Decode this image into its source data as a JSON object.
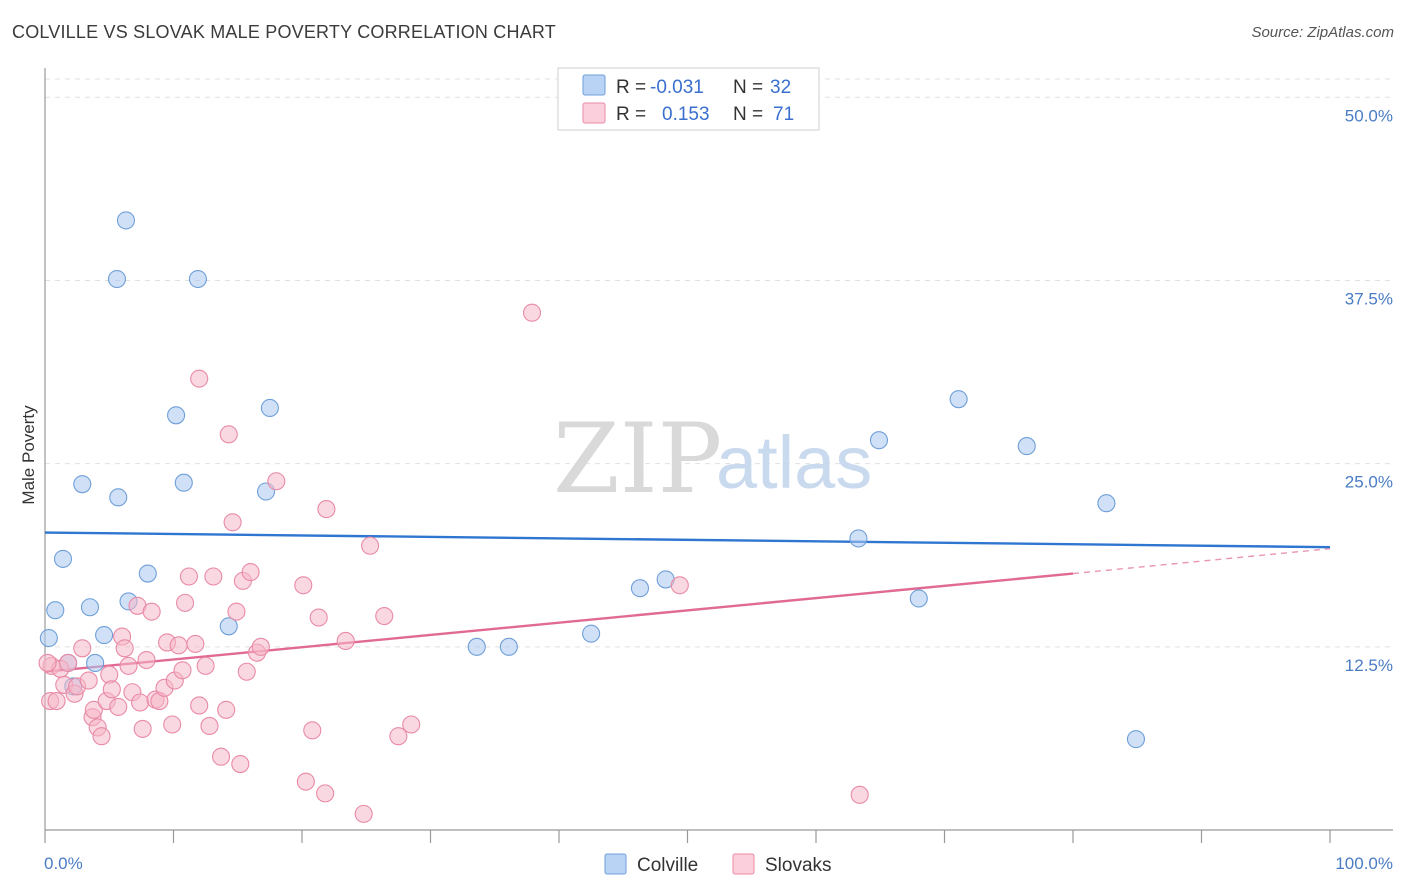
{
  "header": {
    "title": "COLVILLE VS SLOVAK MALE POVERTY CORRELATION CHART",
    "source": "Source: ZipAtlas.com"
  },
  "watermark": {
    "zip": "ZIP",
    "atlas": "atlas"
  },
  "legend": {
    "rows": [
      {
        "r_label": "R =",
        "r_value": "-0.031",
        "n_label": "N =",
        "n_value": "32",
        "color": "#a9c9f0"
      },
      {
        "r_label": "R =",
        "r_value": "0.153",
        "n_label": "N =",
        "n_value": "71",
        "color": "#f6b8c8"
      }
    ]
  },
  "chart_data": {
    "type": "scatter",
    "title": "COLVILLE VS SLOVAK MALE POVERTY CORRELATION CHART",
    "xlabel": "",
    "ylabel": "Male Poverty",
    "xlim": [
      0,
      100
    ],
    "ylim": [
      0,
      52
    ],
    "x_tick_labels": [
      {
        "value": 0,
        "label": "0.0%"
      },
      {
        "value": 100,
        "label": "100.0%"
      }
    ],
    "y_ticks": [
      {
        "value": 12.5,
        "label": "12.5%"
      },
      {
        "value": 25.0,
        "label": "25.0%"
      },
      {
        "value": 37.5,
        "label": "37.5%"
      },
      {
        "value": 50.0,
        "label": "50.0%"
      }
    ],
    "grid": true,
    "legend_position": "bottom-center",
    "series": [
      {
        "name": "Colville",
        "color": "#a9c9f0",
        "stroke": "#6f9fd8",
        "line_color": "#2f76d0",
        "trend": {
          "x0": 0,
          "y0": 20.3,
          "x1": 100,
          "y1": 19.3
        },
        "points": [
          [
            6.3,
            41.6
          ],
          [
            5.6,
            37.6
          ],
          [
            11.9,
            37.6
          ],
          [
            10.2,
            28.3
          ],
          [
            17.5,
            28.8
          ],
          [
            2.9,
            23.6
          ],
          [
            5.7,
            22.7
          ],
          [
            10.8,
            23.7
          ],
          [
            17.2,
            23.1
          ],
          [
            1.4,
            18.5
          ],
          [
            8.0,
            17.5
          ],
          [
            0.8,
            15.0
          ],
          [
            3.5,
            15.2
          ],
          [
            6.5,
            15.6
          ],
          [
            0.3,
            13.1
          ],
          [
            4.6,
            13.3
          ],
          [
            14.3,
            13.9
          ],
          [
            1.8,
            11.4
          ],
          [
            3.9,
            11.4
          ],
          [
            2.2,
            9.8
          ],
          [
            33.6,
            12.5
          ],
          [
            36.1,
            12.5
          ],
          [
            42.5,
            13.4
          ],
          [
            46.3,
            16.5
          ],
          [
            48.3,
            17.1
          ],
          [
            63.3,
            19.9
          ],
          [
            68.0,
            15.8
          ],
          [
            64.9,
            26.6
          ],
          [
            71.1,
            29.4
          ],
          [
            76.4,
            26.2
          ],
          [
            82.6,
            22.3
          ],
          [
            84.9,
            6.2
          ]
        ]
      },
      {
        "name": "Slovaks",
        "color": "#f6b8c8",
        "stroke": "#e98aa6",
        "line_color": "#e06a94",
        "trend": {
          "x0": 0,
          "y0": 10.8,
          "x1": 80,
          "y1": 17.5,
          "dash_to": {
            "x": 100,
            "y": 19.2
          }
        },
        "points": [
          [
            0.5,
            11.2
          ],
          [
            1.2,
            11.0
          ],
          [
            1.8,
            11.4
          ],
          [
            0.4,
            8.8
          ],
          [
            0.9,
            8.8
          ],
          [
            1.5,
            9.9
          ],
          [
            2.3,
            9.3
          ],
          [
            2.5,
            9.8
          ],
          [
            2.9,
            12.4
          ],
          [
            3.4,
            10.2
          ],
          [
            3.7,
            7.7
          ],
          [
            3.8,
            8.2
          ],
          [
            4.1,
            7.0
          ],
          [
            4.4,
            6.4
          ],
          [
            4.8,
            8.8
          ],
          [
            5.0,
            10.6
          ],
          [
            5.2,
            9.6
          ],
          [
            5.7,
            8.4
          ],
          [
            6.0,
            13.2
          ],
          [
            6.2,
            12.4
          ],
          [
            6.5,
            11.2
          ],
          [
            6.8,
            9.4
          ],
          [
            7.2,
            15.3
          ],
          [
            7.4,
            8.7
          ],
          [
            7.6,
            6.9
          ],
          [
            7.9,
            11.6
          ],
          [
            8.3,
            14.9
          ],
          [
            8.6,
            8.9
          ],
          [
            8.9,
            8.8
          ],
          [
            9.3,
            9.7
          ],
          [
            9.5,
            12.8
          ],
          [
            9.9,
            7.2
          ],
          [
            10.1,
            10.2
          ],
          [
            10.4,
            12.6
          ],
          [
            10.7,
            10.9
          ],
          [
            10.9,
            15.5
          ],
          [
            11.2,
            17.3
          ],
          [
            11.7,
            12.7
          ],
          [
            12.0,
            8.5
          ],
          [
            12.5,
            11.2
          ],
          [
            12.8,
            7.1
          ],
          [
            13.1,
            17.3
          ],
          [
            13.7,
            5.0
          ],
          [
            14.1,
            8.2
          ],
          [
            14.3,
            27.0
          ],
          [
            14.6,
            21.0
          ],
          [
            14.9,
            14.9
          ],
          [
            15.2,
            4.5
          ],
          [
            15.4,
            17.0
          ],
          [
            15.7,
            10.8
          ],
          [
            16.0,
            17.6
          ],
          [
            16.5,
            12.1
          ],
          [
            16.8,
            12.5
          ],
          [
            18.0,
            23.8
          ],
          [
            12.0,
            30.8
          ],
          [
            20.1,
            16.7
          ],
          [
            20.3,
            3.3
          ],
          [
            20.8,
            6.8
          ],
          [
            21.3,
            14.5
          ],
          [
            21.8,
            2.5
          ],
          [
            21.9,
            21.9
          ],
          [
            23.4,
            12.9
          ],
          [
            24.8,
            1.1
          ],
          [
            25.3,
            19.4
          ],
          [
            26.4,
            14.6
          ],
          [
            27.5,
            6.4
          ],
          [
            28.5,
            7.2
          ],
          [
            37.9,
            35.3
          ],
          [
            49.4,
            16.7
          ],
          [
            63.4,
            2.4
          ],
          [
            0.2,
            11.4
          ]
        ]
      }
    ]
  },
  "bottom_legend": {
    "items": [
      {
        "label": "Colville",
        "color": "#a9c9f0"
      },
      {
        "label": "Slovaks",
        "color": "#f6b8c8"
      }
    ]
  }
}
